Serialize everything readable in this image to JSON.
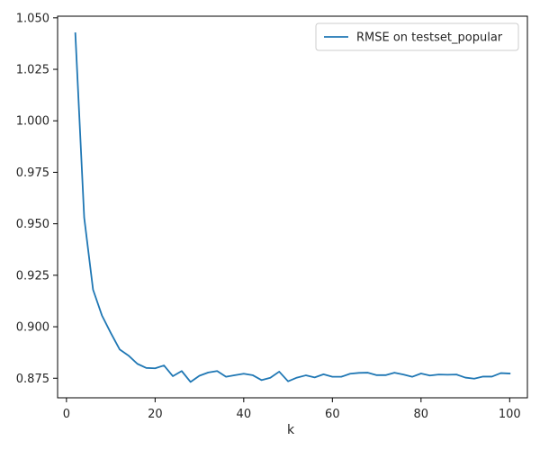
{
  "chart_data": {
    "type": "line",
    "title": "",
    "xlabel": "k",
    "ylabel": "",
    "xlim": [
      -2,
      104
    ],
    "ylim": [
      0.8655,
      1.0508
    ],
    "x_ticks": [
      0,
      20,
      40,
      60,
      80,
      100
    ],
    "x_tick_labels": [
      "0",
      "20",
      "40",
      "60",
      "80",
      "100"
    ],
    "y_ticks": [
      0.875,
      0.9,
      0.925,
      0.95,
      0.975,
      1.0,
      1.025,
      1.05
    ],
    "y_tick_labels": [
      "0.875",
      "0.900",
      "0.925",
      "0.950",
      "0.975",
      "1.000",
      "1.025",
      "1.050"
    ],
    "grid": false,
    "legend_position": "top-right",
    "series": [
      {
        "name": "RMSE on testset_popular",
        "color": "#1f77b4",
        "x": [
          2,
          4,
          6,
          8,
          10,
          12,
          14,
          16,
          18,
          20,
          22,
          24,
          26,
          28,
          30,
          32,
          34,
          36,
          38,
          40,
          42,
          44,
          46,
          48,
          50,
          52,
          54,
          56,
          58,
          60,
          62,
          64,
          66,
          68,
          70,
          72,
          74,
          76,
          78,
          80,
          82,
          84,
          86,
          88,
          90,
          92,
          94,
          96,
          98,
          100
        ],
        "y": [
          1.0425,
          0.953,
          0.918,
          0.9055,
          0.897,
          0.889,
          0.886,
          0.882,
          0.88,
          0.8798,
          0.8812,
          0.876,
          0.8785,
          0.8732,
          0.8762,
          0.8778,
          0.8785,
          0.8757,
          0.8765,
          0.8772,
          0.8765,
          0.8741,
          0.8752,
          0.8782,
          0.8735,
          0.8753,
          0.8764,
          0.8754,
          0.8769,
          0.8757,
          0.8757,
          0.8772,
          0.8776,
          0.8777,
          0.8765,
          0.8765,
          0.8777,
          0.8768,
          0.8757,
          0.8773,
          0.8763,
          0.8768,
          0.8767,
          0.8768,
          0.8753,
          0.8748,
          0.8758,
          0.8758,
          0.8775,
          0.8773
        ]
      }
    ]
  }
}
